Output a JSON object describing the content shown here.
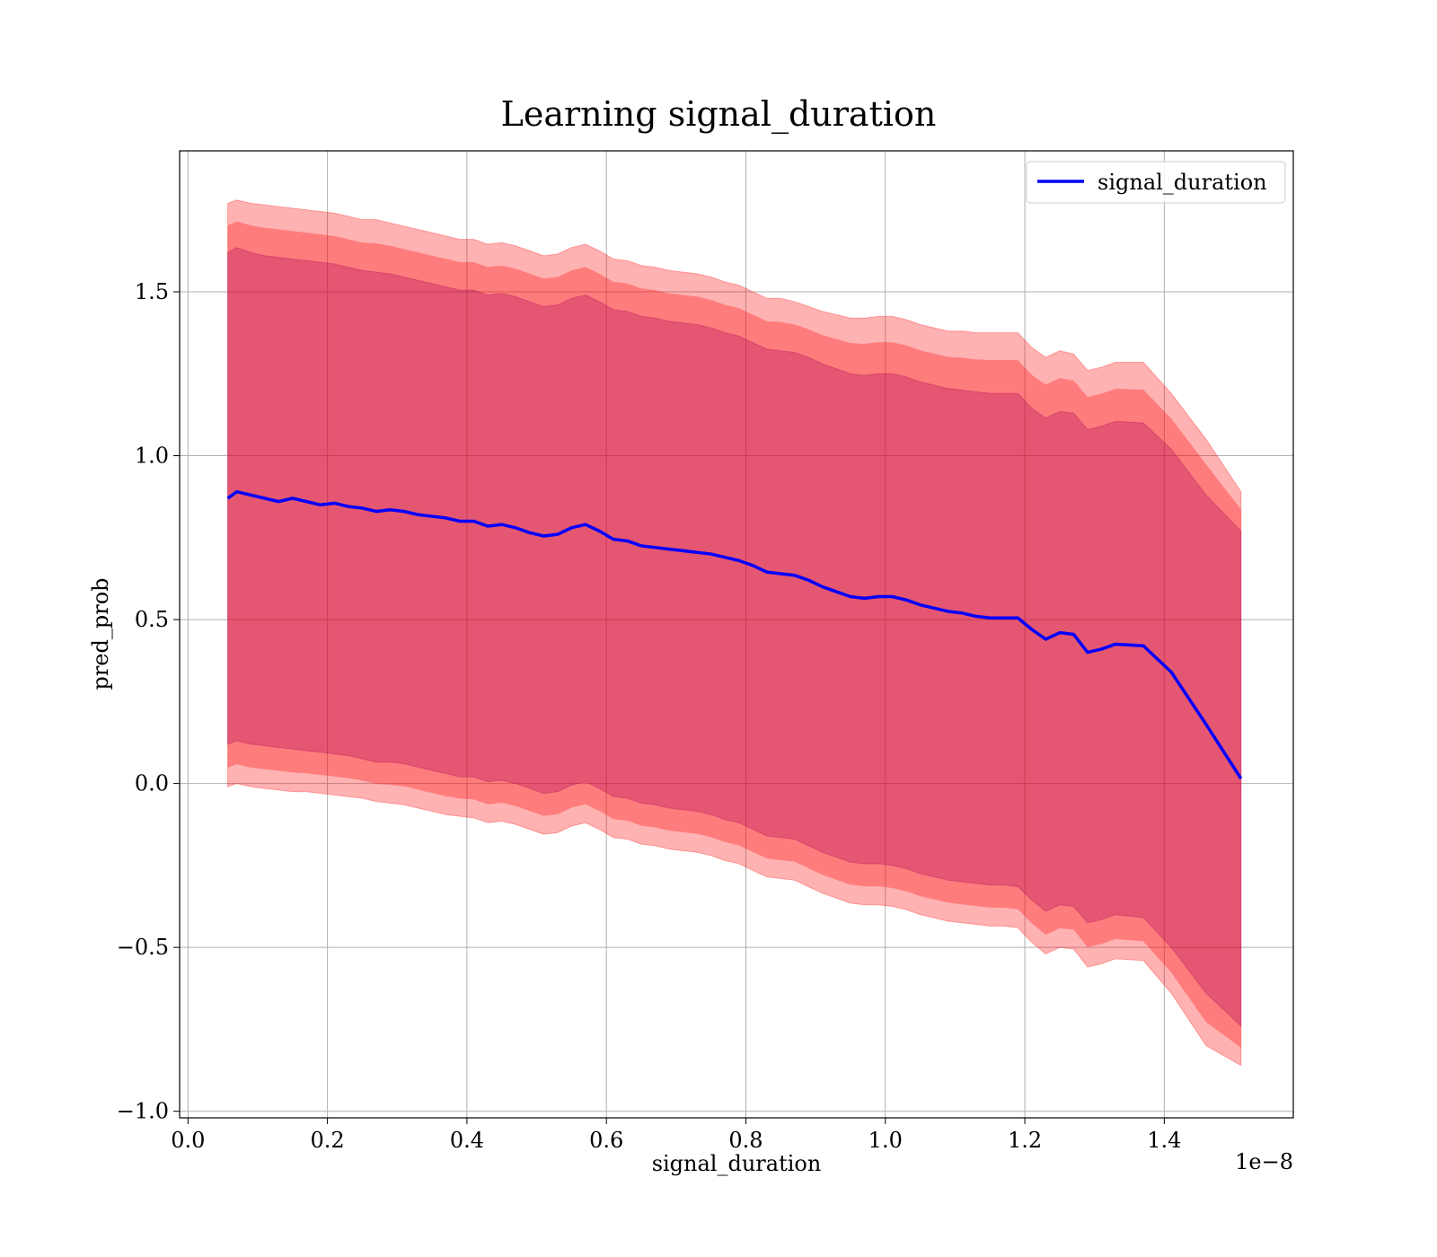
{
  "chart_data": {
    "type": "line",
    "title": "Learning signal_duration",
    "xlabel": "signal_duration",
    "ylabel": "pred_prob",
    "x_offset_label": "1e−8",
    "xlim": [
      -0.012,
      1.585
    ],
    "ylim": [
      -1.02,
      1.93
    ],
    "x_ticks": [
      0.0,
      0.2,
      0.4,
      0.6,
      0.8,
      1.0,
      1.2,
      1.4
    ],
    "x_tick_labels": [
      "0.0",
      "0.2",
      "0.4",
      "0.6",
      "0.8",
      "1.0",
      "1.2",
      "1.4"
    ],
    "y_ticks": [
      -1.0,
      -0.5,
      0.0,
      0.5,
      1.0,
      1.5
    ],
    "y_tick_labels": [
      "−1.0",
      "−0.5",
      "0.0",
      "0.5",
      "1.0",
      "1.5"
    ],
    "grid": true,
    "legend": {
      "position": "top-right",
      "entries": [
        "signal_duration"
      ]
    },
    "colors": {
      "line": "#0000ff",
      "outer_band": "#ff0000",
      "inner_band": "#800080"
    },
    "x": [
      0.057,
      0.07,
      0.09,
      0.11,
      0.13,
      0.15,
      0.17,
      0.19,
      0.21,
      0.23,
      0.25,
      0.27,
      0.29,
      0.31,
      0.33,
      0.35,
      0.37,
      0.39,
      0.41,
      0.43,
      0.45,
      0.47,
      0.49,
      0.51,
      0.53,
      0.55,
      0.57,
      0.59,
      0.61,
      0.63,
      0.65,
      0.67,
      0.69,
      0.71,
      0.73,
      0.75,
      0.77,
      0.79,
      0.81,
      0.83,
      0.85,
      0.87,
      0.89,
      0.91,
      0.93,
      0.95,
      0.97,
      0.99,
      1.01,
      1.03,
      1.05,
      1.07,
      1.09,
      1.11,
      1.13,
      1.15,
      1.17,
      1.19,
      1.21,
      1.23,
      1.25,
      1.27,
      1.29,
      1.31,
      1.33,
      1.37,
      1.41,
      1.46,
      1.51
    ],
    "series": [
      {
        "name": "signal_duration",
        "values": [
          0.87,
          0.89,
          0.88,
          0.87,
          0.86,
          0.87,
          0.86,
          0.85,
          0.855,
          0.845,
          0.84,
          0.83,
          0.835,
          0.83,
          0.82,
          0.815,
          0.81,
          0.8,
          0.8,
          0.785,
          0.79,
          0.78,
          0.765,
          0.755,
          0.76,
          0.78,
          0.79,
          0.77,
          0.745,
          0.74,
          0.725,
          0.72,
          0.715,
          0.71,
          0.705,
          0.7,
          0.69,
          0.68,
          0.665,
          0.645,
          0.64,
          0.635,
          0.62,
          0.6,
          0.585,
          0.57,
          0.565,
          0.57,
          0.57,
          0.56,
          0.545,
          0.535,
          0.525,
          0.52,
          0.51,
          0.505,
          0.505,
          0.505,
          0.47,
          0.44,
          0.46,
          0.455,
          0.4,
          0.41,
          0.425,
          0.42,
          0.34,
          0.18,
          0.015
        ]
      }
    ],
    "bands": [
      {
        "role": "outer",
        "upper": [
          1.77,
          1.78,
          1.77,
          1.765,
          1.76,
          1.755,
          1.75,
          1.745,
          1.74,
          1.73,
          1.72,
          1.72,
          1.71,
          1.7,
          1.69,
          1.68,
          1.67,
          1.66,
          1.66,
          1.645,
          1.65,
          1.64,
          1.625,
          1.61,
          1.615,
          1.635,
          1.645,
          1.625,
          1.6,
          1.595,
          1.58,
          1.575,
          1.565,
          1.56,
          1.555,
          1.545,
          1.53,
          1.52,
          1.5,
          1.48,
          1.48,
          1.47,
          1.455,
          1.44,
          1.43,
          1.42,
          1.42,
          1.425,
          1.425,
          1.415,
          1.4,
          1.39,
          1.38,
          1.38,
          1.375,
          1.375,
          1.375,
          1.375,
          1.33,
          1.3,
          1.32,
          1.31,
          1.26,
          1.27,
          1.285,
          1.285,
          1.19,
          1.05,
          0.89
        ],
        "lower": [
          -0.01,
          0.0,
          -0.01,
          -0.015,
          -0.02,
          -0.025,
          -0.025,
          -0.03,
          -0.035,
          -0.04,
          -0.045,
          -0.055,
          -0.06,
          -0.065,
          -0.075,
          -0.085,
          -0.095,
          -0.1,
          -0.105,
          -0.12,
          -0.115,
          -0.125,
          -0.14,
          -0.155,
          -0.15,
          -0.13,
          -0.12,
          -0.14,
          -0.165,
          -0.17,
          -0.185,
          -0.19,
          -0.2,
          -0.205,
          -0.21,
          -0.22,
          -0.235,
          -0.245,
          -0.265,
          -0.285,
          -0.29,
          -0.295,
          -0.315,
          -0.335,
          -0.35,
          -0.365,
          -0.37,
          -0.37,
          -0.375,
          -0.385,
          -0.4,
          -0.41,
          -0.42,
          -0.425,
          -0.43,
          -0.435,
          -0.435,
          -0.44,
          -0.485,
          -0.52,
          -0.5,
          -0.505,
          -0.56,
          -0.55,
          -0.535,
          -0.54,
          -0.64,
          -0.8,
          -0.86
        ]
      },
      {
        "role": "inner",
        "upper": [
          1.62,
          1.635,
          1.62,
          1.61,
          1.605,
          1.6,
          1.595,
          1.59,
          1.585,
          1.575,
          1.565,
          1.56,
          1.555,
          1.545,
          1.535,
          1.525,
          1.515,
          1.505,
          1.505,
          1.49,
          1.495,
          1.485,
          1.47,
          1.455,
          1.46,
          1.48,
          1.49,
          1.47,
          1.445,
          1.44,
          1.425,
          1.42,
          1.41,
          1.405,
          1.4,
          1.39,
          1.375,
          1.365,
          1.345,
          1.325,
          1.32,
          1.315,
          1.3,
          1.28,
          1.265,
          1.25,
          1.245,
          1.25,
          1.25,
          1.24,
          1.225,
          1.215,
          1.205,
          1.2,
          1.195,
          1.19,
          1.19,
          1.19,
          1.145,
          1.115,
          1.135,
          1.13,
          1.08,
          1.09,
          1.105,
          1.1,
          1.02,
          0.88,
          0.77
        ],
        "lower": [
          0.12,
          0.13,
          0.12,
          0.115,
          0.11,
          0.105,
          0.1,
          0.095,
          0.09,
          0.085,
          0.075,
          0.065,
          0.065,
          0.06,
          0.05,
          0.04,
          0.03,
          0.02,
          0.02,
          0.005,
          0.01,
          0.0,
          -0.015,
          -0.03,
          -0.025,
          -0.005,
          0.005,
          -0.015,
          -0.04,
          -0.045,
          -0.06,
          -0.065,
          -0.075,
          -0.08,
          -0.085,
          -0.095,
          -0.11,
          -0.12,
          -0.14,
          -0.16,
          -0.165,
          -0.17,
          -0.19,
          -0.21,
          -0.225,
          -0.24,
          -0.245,
          -0.245,
          -0.25,
          -0.26,
          -0.275,
          -0.285,
          -0.295,
          -0.3,
          -0.305,
          -0.31,
          -0.31,
          -0.315,
          -0.355,
          -0.39,
          -0.37,
          -0.375,
          -0.425,
          -0.415,
          -0.4,
          -0.41,
          -0.5,
          -0.64,
          -0.74
        ]
      }
    ]
  }
}
